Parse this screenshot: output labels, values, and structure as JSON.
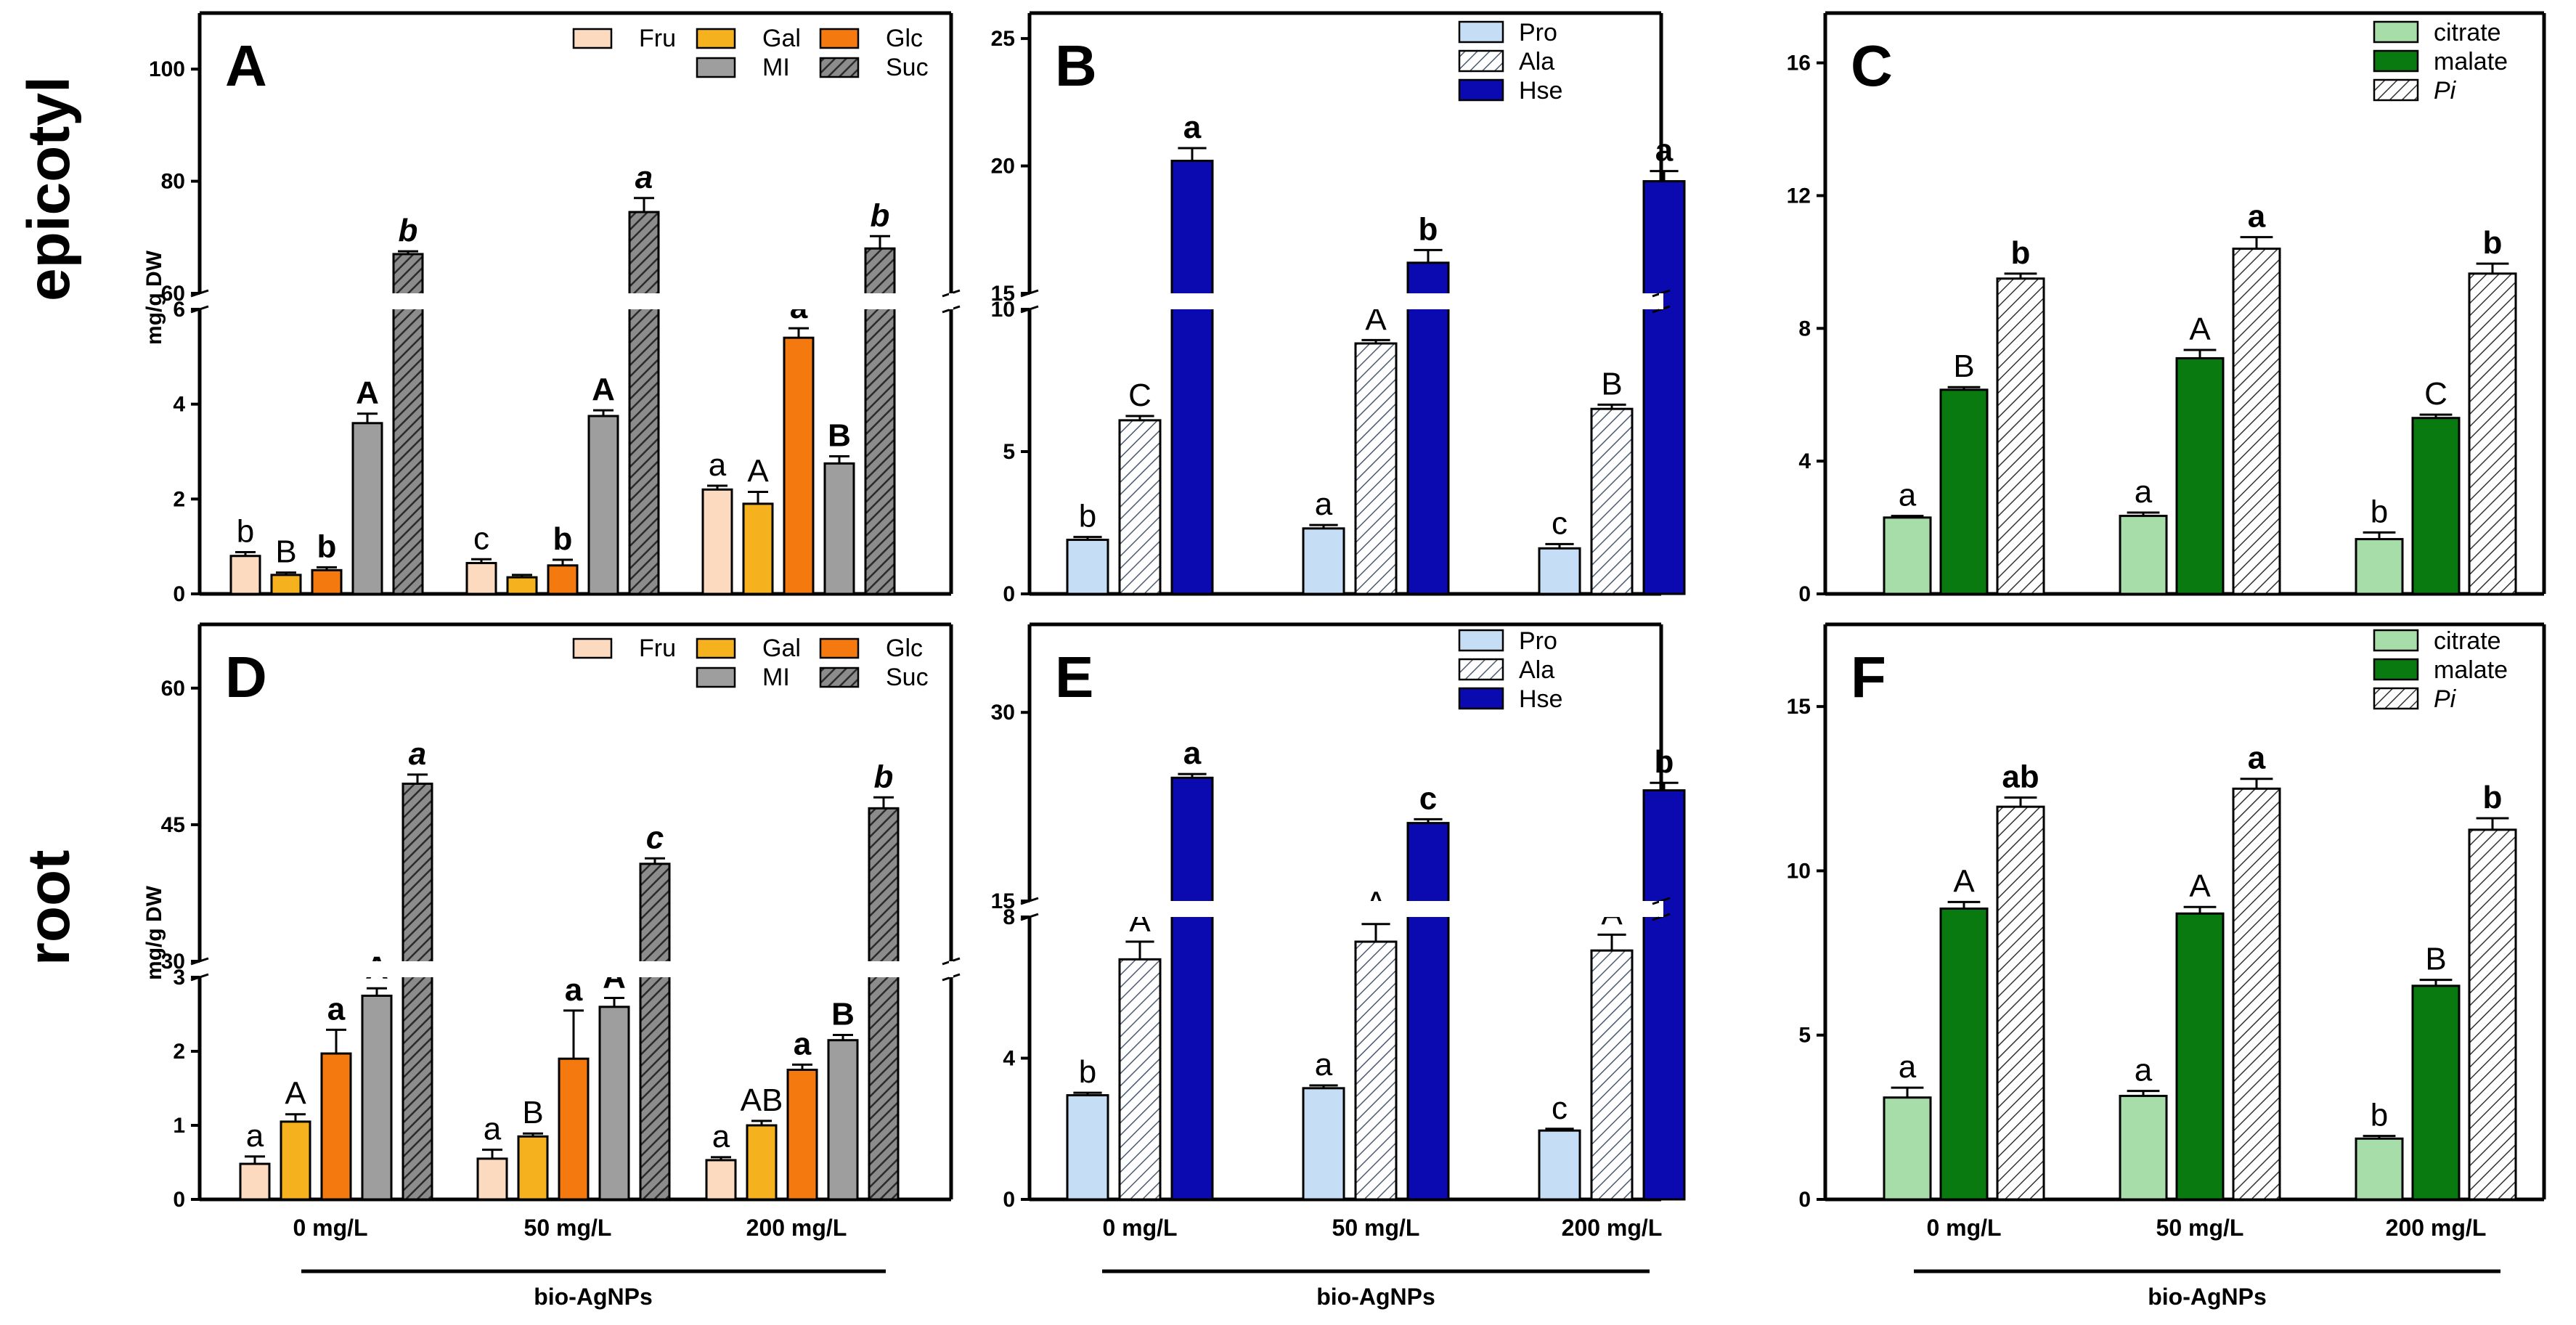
{
  "row_labels": [
    "epicotyl",
    "root"
  ],
  "group_label": "bio-AgNPs",
  "colors": {
    "Fru": "#FCDABF",
    "Gal": "#F6B21E",
    "Glc": "#F47A0F",
    "MI": "#9E9E9E",
    "Suc": "#6E6E6E",
    "Pro": "#C6DDF6",
    "Ala": "#C6DDF6",
    "Hse": "#0A0AB0",
    "citrate": "#A6DDA8",
    "malate": "#097A0F",
    "Pi": "#FFFFFF"
  },
  "chart_data": [
    {
      "panel": "A",
      "type": "bar",
      "row": "epicotyl",
      "ylabel": "mg/g DW",
      "categories": [
        "0 mg/L",
        "50 mg/L",
        "200 mg/L"
      ],
      "broken_axis": {
        "lower": [
          0,
          6
        ],
        "upper": [
          60,
          110
        ],
        "lower_ticks": [
          "0",
          "2",
          "4",
          "6"
        ],
        "upper_ticks": [
          "60",
          "80",
          "100"
        ]
      },
      "series": [
        {
          "name": "Fru",
          "values": [
            0.8,
            0.65,
            2.2
          ],
          "errors": [
            0.08,
            0.08,
            0.08
          ],
          "letters": [
            "b",
            "c",
            "a"
          ],
          "letter_style": "normal"
        },
        {
          "name": "Gal",
          "values": [
            0.4,
            0.35,
            1.9
          ],
          "errors": [
            0.05,
            0.05,
            0.25
          ],
          "letters": [
            "B",
            "",
            "A"
          ],
          "letter_style": "normal"
        },
        {
          "name": "Glc",
          "values": [
            0.5,
            0.6,
            5.4
          ],
          "errors": [
            0.06,
            0.12,
            0.2
          ],
          "letters": [
            "b",
            "b",
            "a"
          ],
          "letter_style": "bold"
        },
        {
          "name": "MI",
          "values": [
            3.6,
            3.75,
            2.75
          ],
          "errors": [
            0.2,
            0.12,
            0.15
          ],
          "letters": [
            "A",
            "A",
            "B"
          ],
          "letter_style": "bold"
        },
        {
          "name": "Suc",
          "values": [
            67,
            74.5,
            68
          ],
          "errors": [
            0.5,
            2.5,
            2.2
          ],
          "letters": [
            "b",
            "a",
            "b"
          ],
          "letter_style": "bolditalic"
        }
      ]
    },
    {
      "panel": "B",
      "type": "bar",
      "row": "epicotyl",
      "categories": [
        "0 mg/L",
        "50 mg/L",
        "200 mg/L"
      ],
      "broken_axis": {
        "lower": [
          0,
          10
        ],
        "upper": [
          15,
          26
        ],
        "lower_ticks": [
          "0",
          "5",
          "10"
        ],
        "upper_ticks": [
          "15",
          "20",
          "25"
        ]
      },
      "series": [
        {
          "name": "Pro",
          "values": [
            1.9,
            2.3,
            1.6
          ],
          "errors": [
            0.1,
            0.12,
            0.15
          ],
          "letters": [
            "b",
            "a",
            "c"
          ],
          "letter_style": "normal"
        },
        {
          "name": "Ala",
          "values": [
            6.1,
            8.8,
            6.5
          ],
          "errors": [
            0.15,
            0.12,
            0.15
          ],
          "letters": [
            "C",
            "A",
            "B"
          ],
          "letter_style": "normal"
        },
        {
          "name": "Hse",
          "values": [
            20.2,
            16.2,
            19.4
          ],
          "errors": [
            0.5,
            0.5,
            0.4
          ],
          "letters": [
            "a",
            "b",
            "a"
          ],
          "letter_style": "bold"
        }
      ]
    },
    {
      "panel": "C",
      "type": "bar",
      "row": "epicotyl",
      "categories": [
        "0 mg/L",
        "50 mg/L",
        "200 mg/L"
      ],
      "axis": {
        "range": [
          0,
          17.5
        ],
        "ticks": [
          "0",
          "4",
          "8",
          "12",
          "16"
        ]
      },
      "series": [
        {
          "name": "citrate",
          "values": [
            2.3,
            2.35,
            1.65
          ],
          "errors": [
            0.05,
            0.1,
            0.2
          ],
          "letters": [
            "a",
            "a",
            "b"
          ],
          "letter_style": "normal"
        },
        {
          "name": "malate",
          "values": [
            6.15,
            7.1,
            5.3
          ],
          "errors": [
            0.08,
            0.25,
            0.1
          ],
          "letters": [
            "B",
            "A",
            "C"
          ],
          "letter_style": "normal"
        },
        {
          "name": "Pi",
          "values": [
            9.5,
            10.4,
            9.65
          ],
          "errors": [
            0.15,
            0.35,
            0.3
          ],
          "letters": [
            "b",
            "a",
            "b"
          ],
          "letter_style": "bold"
        }
      ]
    },
    {
      "panel": "D",
      "type": "bar",
      "row": "root",
      "ylabel": "mg/g DW",
      "categories": [
        "0 mg/L",
        "50 mg/L",
        "200 mg/L"
      ],
      "broken_axis": {
        "lower": [
          0,
          3
        ],
        "upper": [
          30,
          67
        ],
        "lower_ticks": [
          "0",
          "1",
          "2",
          "3"
        ],
        "upper_ticks": [
          "30",
          "45",
          "60"
        ]
      },
      "series": [
        {
          "name": "Fru",
          "values": [
            0.48,
            0.55,
            0.53
          ],
          "errors": [
            0.1,
            0.12,
            0.04
          ],
          "letters": [
            "a",
            "a",
            "a"
          ],
          "letter_style": "normal"
        },
        {
          "name": "Gal",
          "values": [
            1.05,
            0.85,
            1.0
          ],
          "errors": [
            0.1,
            0.04,
            0.06
          ],
          "letters": [
            "A",
            "B",
            "AB"
          ],
          "letter_style": "normal"
        },
        {
          "name": "Glc",
          "values": [
            1.97,
            1.9,
            1.75
          ],
          "errors": [
            0.32,
            0.65,
            0.07
          ],
          "letters": [
            "a",
            "a",
            "a"
          ],
          "letter_style": "bold"
        },
        {
          "name": "MI",
          "values": [
            2.75,
            2.6,
            2.15
          ],
          "errors": [
            0.1,
            0.12,
            0.07
          ],
          "letters": [
            "A",
            "A",
            "B"
          ],
          "letter_style": "bold"
        },
        {
          "name": "Suc",
          "values": [
            49.5,
            40.7,
            46.8
          ],
          "errors": [
            1.0,
            0.6,
            1.2
          ],
          "letters": [
            "a",
            "c",
            "b"
          ],
          "letter_style": "bolditalic"
        }
      ]
    },
    {
      "panel": "E",
      "type": "bar",
      "row": "root",
      "categories": [
        "0 mg/L",
        "50 mg/L",
        "200 mg/L"
      ],
      "broken_axis": {
        "lower": [
          0,
          8
        ],
        "upper": [
          15,
          37
        ],
        "lower_ticks": [
          "0",
          "4",
          "8"
        ],
        "upper_ticks": [
          "15",
          "30"
        ]
      },
      "series": [
        {
          "name": "Pro",
          "values": [
            2.95,
            3.15,
            1.95
          ],
          "errors": [
            0.07,
            0.08,
            0.05
          ],
          "letters": [
            "b",
            "a",
            "c"
          ],
          "letter_style": "normal"
        },
        {
          "name": "Ala",
          "values": [
            6.8,
            7.3,
            7.05
          ],
          "errors": [
            0.5,
            0.5,
            0.45
          ],
          "letters": [
            "A",
            "A",
            "A"
          ],
          "letter_style": "normal"
        },
        {
          "name": "Hse",
          "values": [
            24.8,
            21.2,
            23.8
          ],
          "errors": [
            0.3,
            0.3,
            0.6
          ],
          "letters": [
            "a",
            "c",
            "b"
          ],
          "letter_style": "bold"
        }
      ]
    },
    {
      "panel": "F",
      "type": "bar",
      "row": "root",
      "categories": [
        "0 mg/L",
        "50 mg/L",
        "200 mg/L"
      ],
      "axis": {
        "range": [
          0,
          17.5
        ],
        "ticks": [
          "0",
          "5",
          "10",
          "15"
        ]
      },
      "series": [
        {
          "name": "citrate",
          "values": [
            3.1,
            3.15,
            1.85
          ],
          "errors": [
            0.3,
            0.15,
            0.08
          ],
          "letters": [
            "a",
            "a",
            "b"
          ],
          "letter_style": "normal"
        },
        {
          "name": "malate",
          "values": [
            8.85,
            8.7,
            6.5
          ],
          "errors": [
            0.2,
            0.2,
            0.18
          ],
          "letters": [
            "A",
            "A",
            "B"
          ],
          "letter_style": "normal"
        },
        {
          "name": "Pi",
          "values": [
            11.95,
            12.5,
            11.25
          ],
          "errors": [
            0.28,
            0.3,
            0.35
          ],
          "letters": [
            "ab",
            "a",
            "b"
          ],
          "letter_style": "bold"
        }
      ]
    }
  ]
}
